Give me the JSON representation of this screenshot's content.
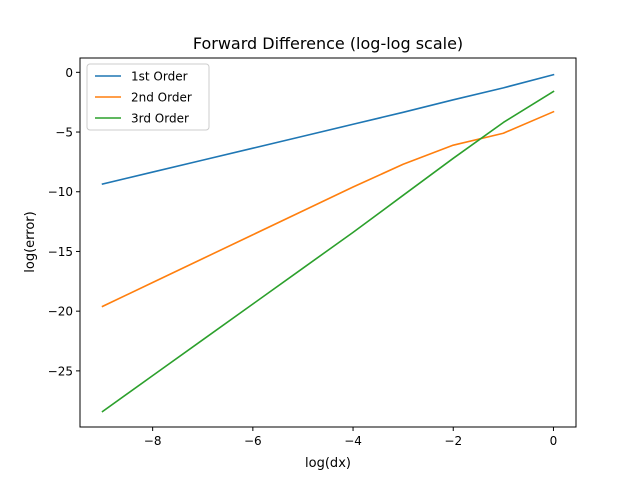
{
  "chart_data": {
    "type": "line",
    "title": "Forward Difference (log-log scale)",
    "xlabel": "log(dx)",
    "ylabel": "log(error)",
    "xlim": [
      -9.45,
      0.45
    ],
    "ylim": [
      -29.7,
      1.2
    ],
    "xticks": [
      -8,
      -6,
      -4,
      -2,
      0
    ],
    "xtick_labels": [
      "−8",
      "−6",
      "−4",
      "−2",
      "0"
    ],
    "yticks": [
      0,
      -5,
      -10,
      -15,
      -20,
      -25
    ],
    "ytick_labels": [
      "0",
      "−5",
      "−10",
      "−15",
      "−20",
      "−25"
    ],
    "grid": false,
    "legend_position": "upper left",
    "x": [
      -9,
      -8,
      -7,
      -6,
      -5,
      -4,
      -3,
      -2,
      -1,
      0
    ],
    "series": [
      {
        "name": "1st Order",
        "color": "#1f77b4",
        "values": [
          -9.35,
          -8.35,
          -7.35,
          -6.35,
          -5.35,
          -4.35,
          -3.35,
          -2.3,
          -1.3,
          -0.2
        ]
      },
      {
        "name": "2nd Order",
        "color": "#ff7f0e",
        "values": [
          -19.6,
          -17.6,
          -15.6,
          -13.6,
          -11.6,
          -9.6,
          -7.7,
          -6.1,
          -5.1,
          -3.3
        ]
      },
      {
        "name": "3rd Order",
        "color": "#2ca02c",
        "values": [
          -28.4,
          -25.4,
          -22.4,
          -19.4,
          -16.4,
          -13.4,
          -10.3,
          -7.2,
          -4.2,
          -1.6
        ]
      }
    ]
  }
}
